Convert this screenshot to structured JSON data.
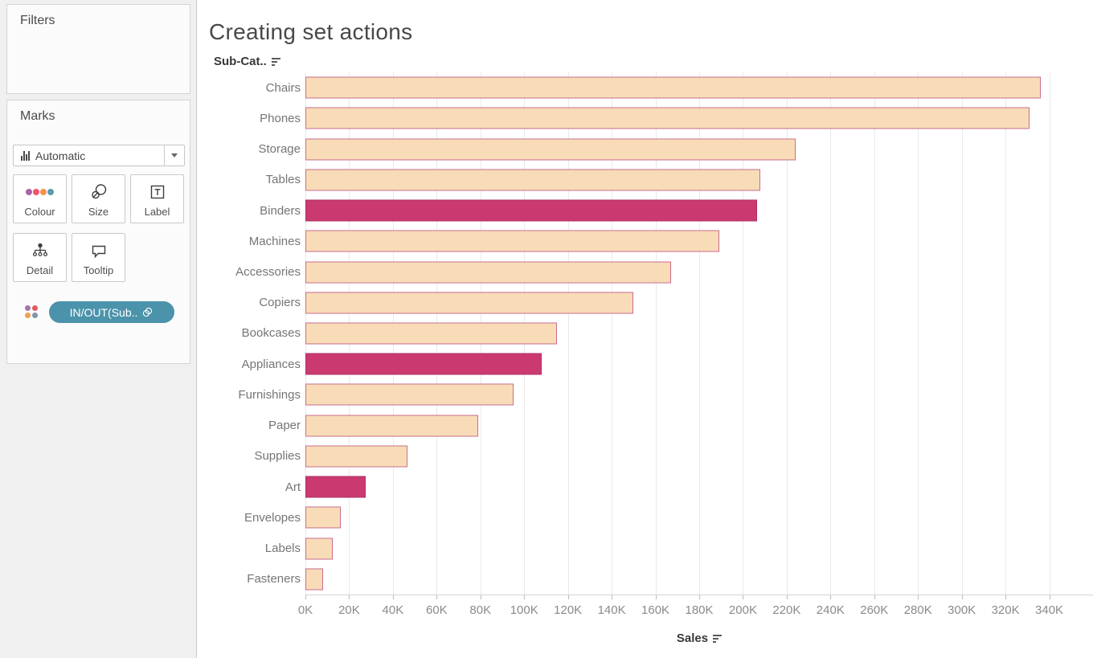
{
  "sidebar": {
    "filters": {
      "title": "Filters"
    },
    "marks": {
      "title": "Marks",
      "mark_type": "Automatic",
      "buttons": [
        {
          "id": "colour",
          "label": "Colour"
        },
        {
          "id": "size",
          "label": "Size"
        },
        {
          "id": "label",
          "label": "Label"
        },
        {
          "id": "detail",
          "label": "Detail"
        },
        {
          "id": "tooltip",
          "label": "Tooltip"
        }
      ],
      "pill": {
        "label": "IN/OUT(Sub..",
        "color": "#4b93aa",
        "icon": "link-paperclip-icon"
      }
    }
  },
  "main": {
    "title": "Creating set actions",
    "row_field_label": "Sub-Cat..",
    "axis_field_label": "Sales"
  },
  "chart_data": {
    "type": "bar",
    "orientation": "horizontal",
    "title": "Creating set actions",
    "xlabel": "Sales",
    "ylabel": "Sub-Category",
    "xlim": [
      0,
      360000
    ],
    "x_tick_interval": 20000,
    "x_tick_labels": [
      "0K",
      "20K",
      "40K",
      "60K",
      "80K",
      "100K",
      "120K",
      "140K",
      "160K",
      "180K",
      "200K",
      "220K",
      "240K",
      "260K",
      "280K",
      "300K",
      "320K",
      "340K"
    ],
    "grid": "vertical",
    "legend": "none",
    "colors": {
      "bar_fill": "#f8dcb8",
      "bar_border": "#c96d8c",
      "in_set_fill": "#ca3a70"
    },
    "items": [
      {
        "label": "Chairs",
        "value": 336000,
        "in_set": false
      },
      {
        "label": "Phones",
        "value": 331000,
        "in_set": false
      },
      {
        "label": "Storage",
        "value": 224000,
        "in_set": false
      },
      {
        "label": "Tables",
        "value": 208000,
        "in_set": false
      },
      {
        "label": "Binders",
        "value": 206500,
        "in_set": true
      },
      {
        "label": "Machines",
        "value": 189000,
        "in_set": false
      },
      {
        "label": "Accessories",
        "value": 167000,
        "in_set": false
      },
      {
        "label": "Copiers",
        "value": 150000,
        "in_set": false
      },
      {
        "label": "Bookcases",
        "value": 115000,
        "in_set": false
      },
      {
        "label": "Appliances",
        "value": 108000,
        "in_set": true
      },
      {
        "label": "Furnishings",
        "value": 95000,
        "in_set": false
      },
      {
        "label": "Paper",
        "value": 79000,
        "in_set": false
      },
      {
        "label": "Supplies",
        "value": 46500,
        "in_set": false
      },
      {
        "label": "Art",
        "value": 27500,
        "in_set": true
      },
      {
        "label": "Envelopes",
        "value": 16000,
        "in_set": false
      },
      {
        "label": "Labels",
        "value": 12500,
        "in_set": false
      },
      {
        "label": "Fasteners",
        "value": 8000,
        "in_set": false
      }
    ]
  }
}
